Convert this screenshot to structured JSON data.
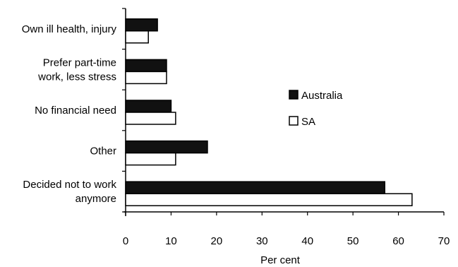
{
  "chart_data": {
    "type": "bar",
    "orientation": "horizontal",
    "categories": [
      [
        "Own ill health, injury"
      ],
      [
        "Prefer part-time",
        "work, less stress"
      ],
      [
        "No financial need"
      ],
      [
        "Other"
      ],
      [
        "Decided not to work",
        "anymore"
      ]
    ],
    "series": [
      {
        "name": "Australia",
        "color": "#111111",
        "values": [
          7,
          9,
          10,
          18,
          57
        ]
      },
      {
        "name": "SA",
        "color": "#ffffff",
        "values": [
          5,
          9,
          11,
          11,
          63
        ]
      }
    ],
    "xlabel": "Per cent",
    "xlim": [
      0,
      70
    ],
    "xticks": [
      0,
      10,
      20,
      30,
      40,
      50,
      60,
      70
    ],
    "legend_position": "right",
    "grid": false
  }
}
